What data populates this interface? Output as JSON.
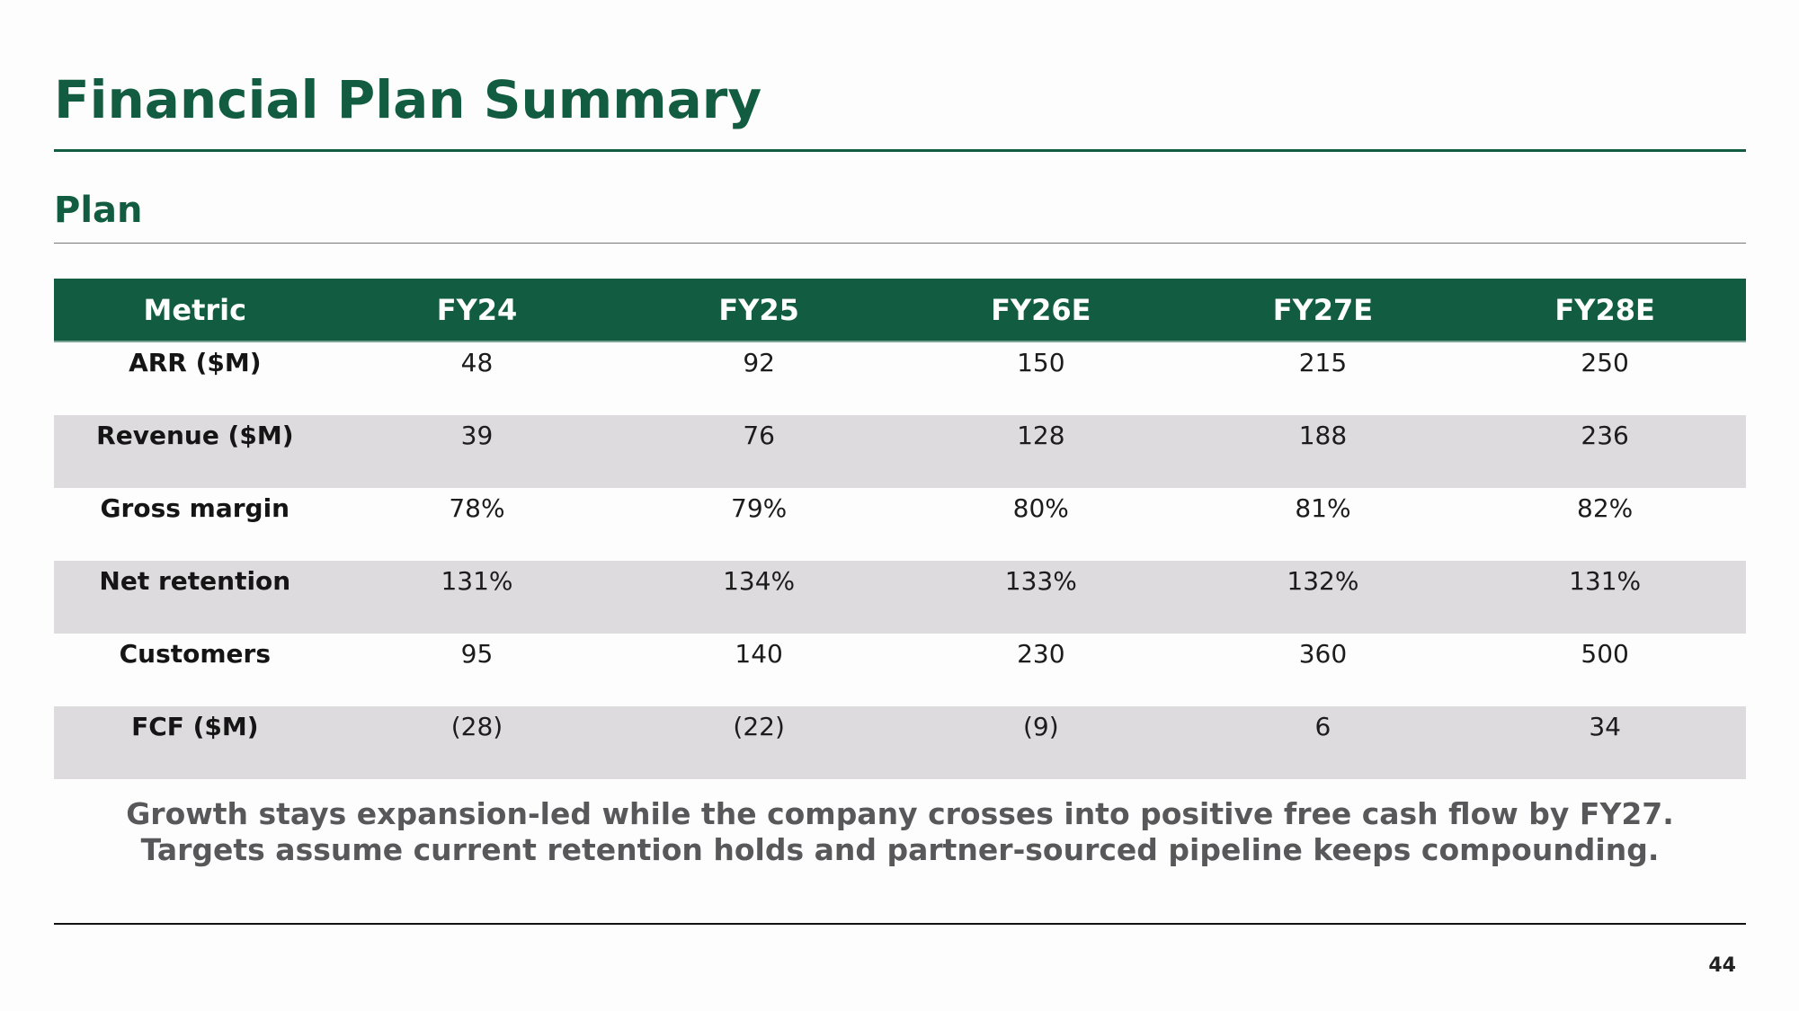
{
  "slide": {
    "title": "Financial Plan Summary",
    "section": "Plan",
    "page_number": "44"
  },
  "table": {
    "headers": [
      "Metric",
      "FY24",
      "FY25",
      "FY26E",
      "FY27E",
      "FY28E"
    ],
    "rows": [
      [
        "ARR ($M)",
        "48",
        "92",
        "150",
        "215",
        "250"
      ],
      [
        "Revenue ($M)",
        "39",
        "76",
        "128",
        "188",
        "236"
      ],
      [
        "Gross margin",
        "78%",
        "79%",
        "80%",
        "81%",
        "82%"
      ],
      [
        "Net retention",
        "131%",
        "134%",
        "133%",
        "132%",
        "131%"
      ],
      [
        "Customers",
        "95",
        "140",
        "230",
        "360",
        "500"
      ],
      [
        "FCF ($M)",
        "(28)",
        "(22)",
        "(9)",
        "6",
        "34"
      ]
    ]
  },
  "takeaway": {
    "line1": "Growth stays expansion-led while the company crosses into positive free cash flow by FY27.",
    "line2": "Targets assume current retention holds and partner-sourced pipeline keeps compounding."
  },
  "colors": {
    "brand_green": "#125c41",
    "row_alt": "#dddbdd",
    "takeaway_text": "#58585a"
  }
}
